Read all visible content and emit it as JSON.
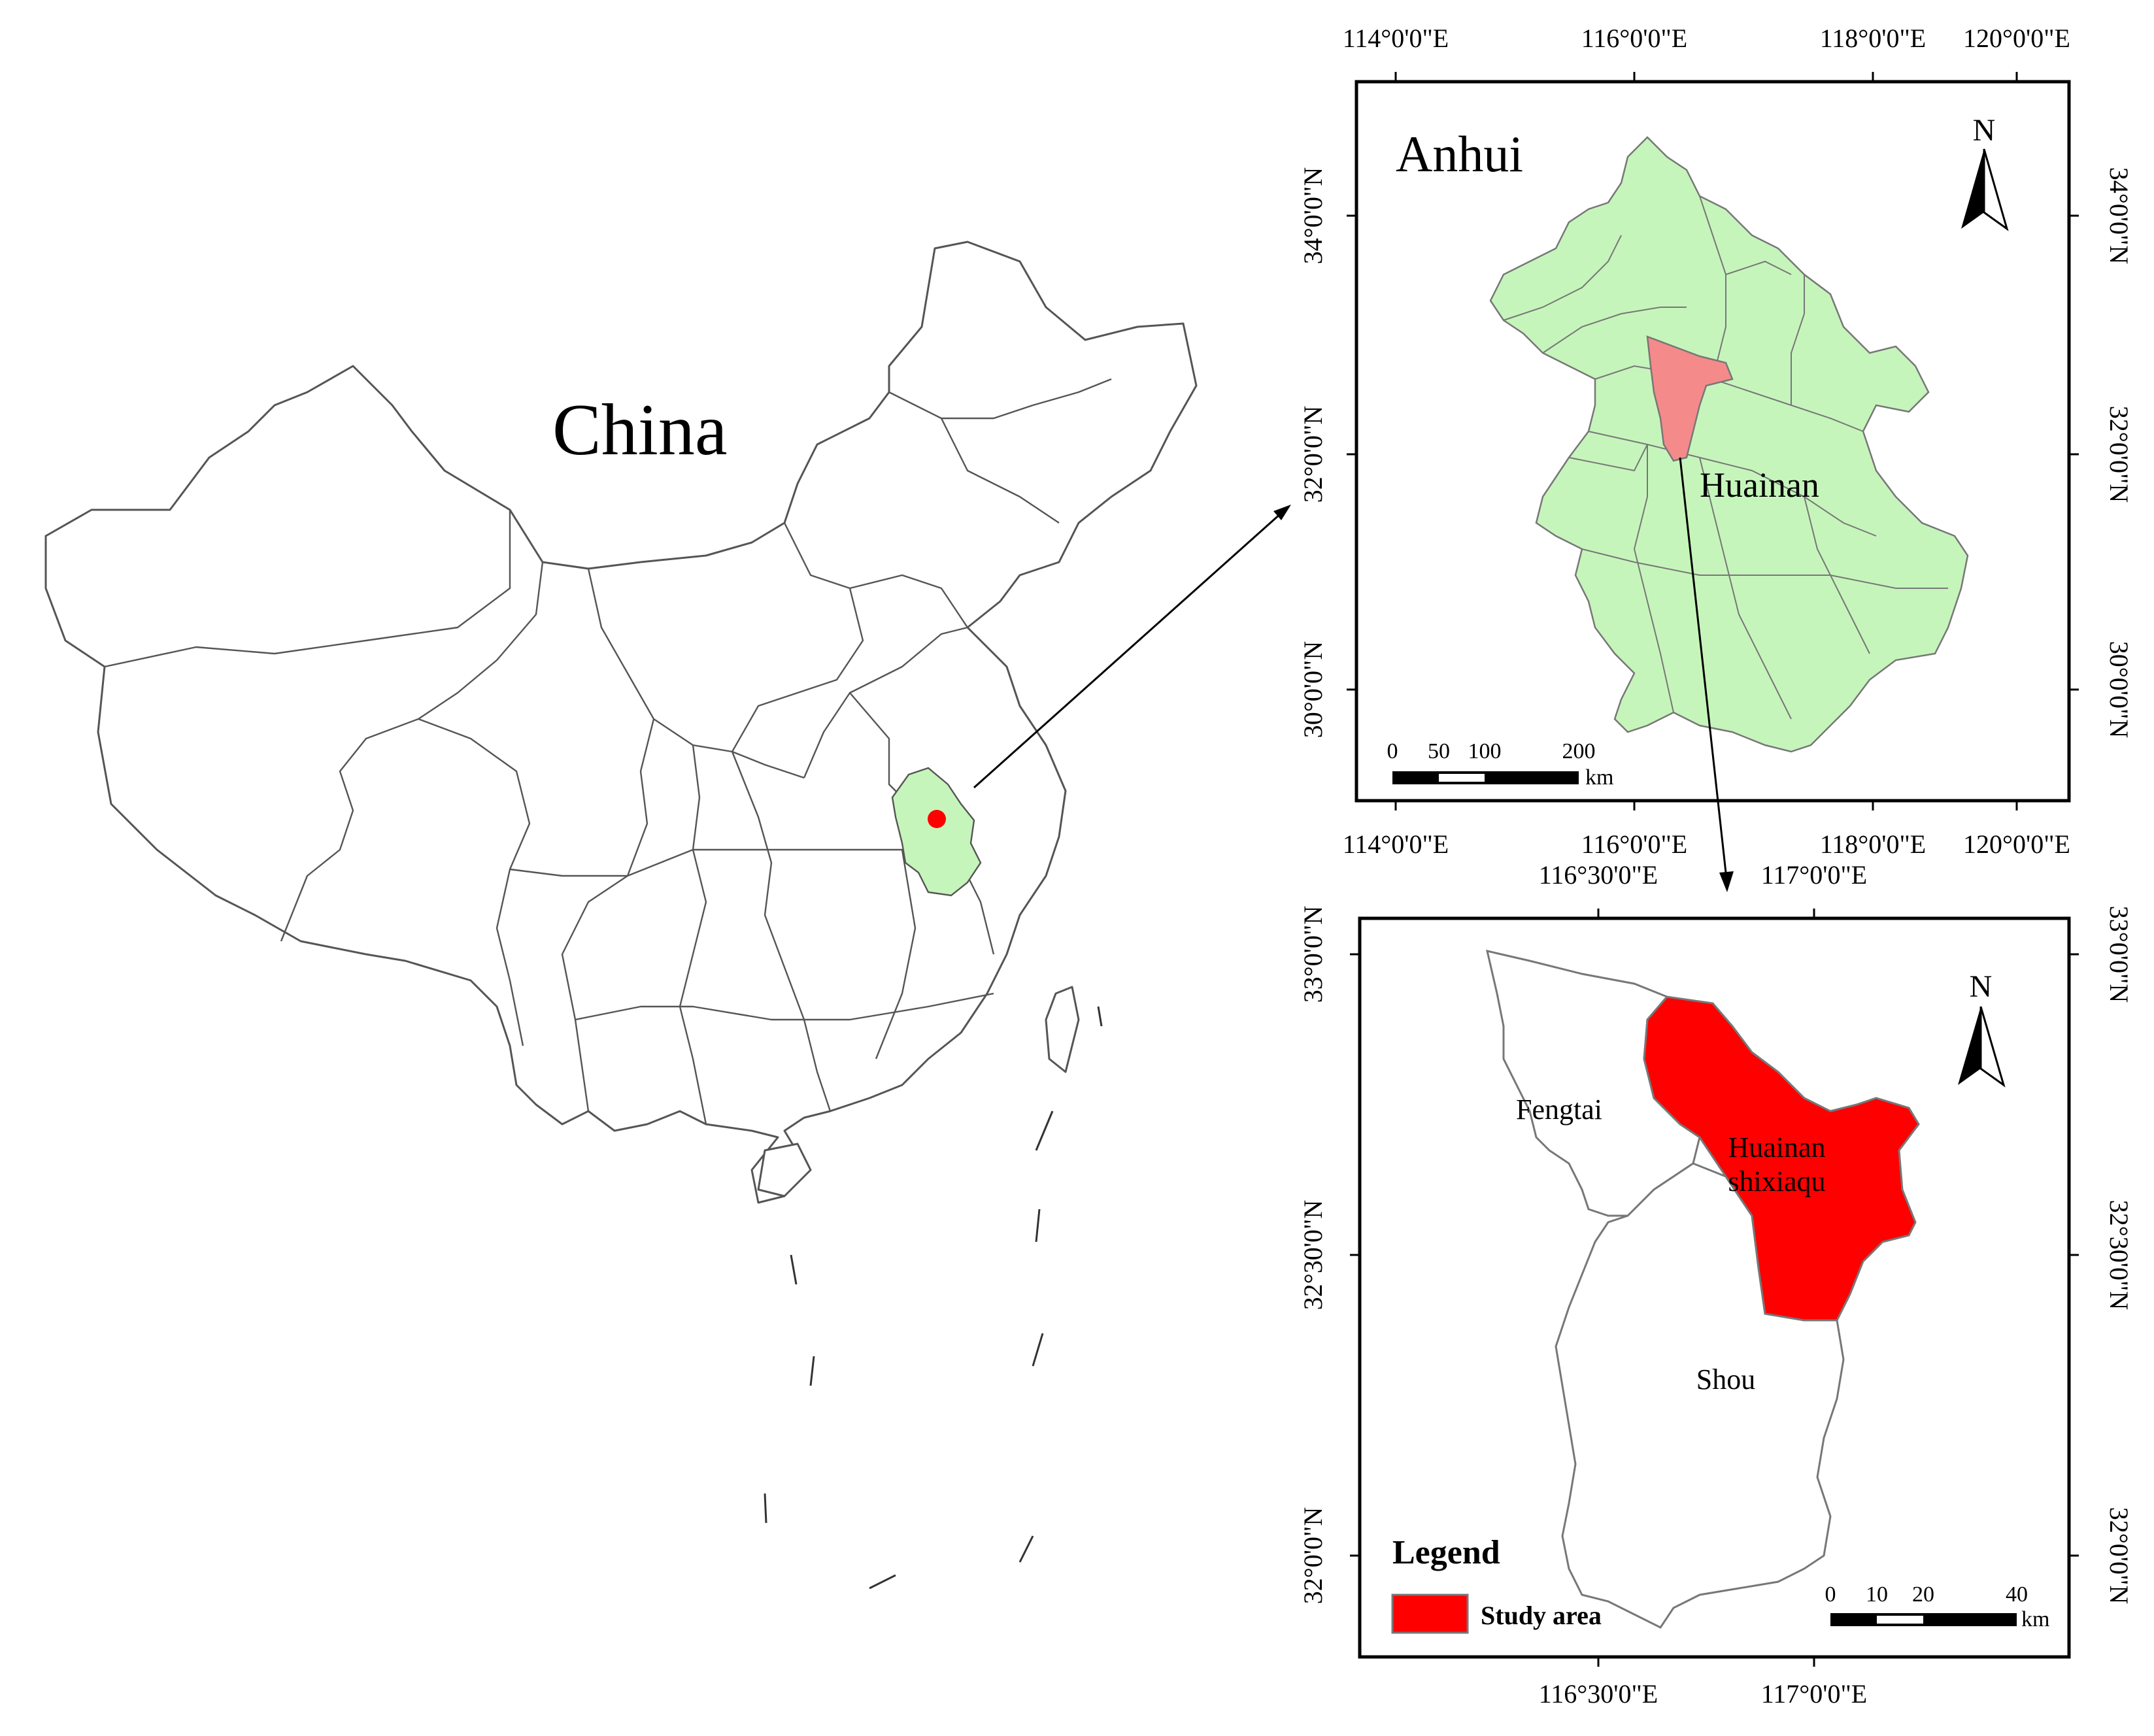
{
  "china_map": {
    "title": "China",
    "highlight_color": "#c6f5bb",
    "point_color": "#ff0000"
  },
  "anhui_map": {
    "title": "Anhui",
    "highlight_label": "Huainan",
    "highlight_label_color": "#f58a8a",
    "fill_color": "#c6f5bb",
    "highlight_color": "#f58a8a",
    "north": "N",
    "lon_ticks": [
      "114°0'0\"E",
      "116°0'0\"E",
      "118°0'0\"E",
      "120°0'0\"E"
    ],
    "lat_ticks": [
      "34°0'0\"N",
      "32°0'0\"N",
      "30°0'0\"N"
    ],
    "scalebar": {
      "labels": [
        "0",
        "50",
        "100",
        "200"
      ],
      "unit": "km"
    }
  },
  "huainan_map": {
    "north": "N",
    "lon_ticks": [
      "116°30'0\"E",
      "117°0'0\"E"
    ],
    "lat_ticks": [
      "33°0'0\"N",
      "32°30'0\"N",
      "32°0'0\"N"
    ],
    "regions": {
      "fengtai": "Fengtai",
      "study_line1": "Huainan",
      "study_line2": "shixiaqu",
      "shou": "Shou"
    },
    "study_color": "#ff0000",
    "legend": {
      "title": "Legend",
      "item": "Study area"
    },
    "scalebar": {
      "labels": [
        "0",
        "10",
        "20",
        "40"
      ],
      "unit": "km"
    }
  }
}
